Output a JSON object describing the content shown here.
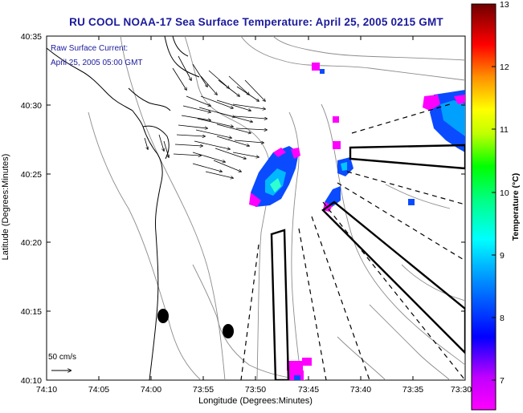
{
  "title": "RU COOL  NOAA-17  Sea Surface Temperature:  April 25, 2005 0215 GMT",
  "overlay": {
    "line1": "Raw Surface Current:",
    "line2": "April 25, 2005 05:00 GMT"
  },
  "scale": {
    "label": "50 cm/s"
  },
  "axes": {
    "xlabel": "Longitude (Degrees:Minutes)",
    "ylabel": "Latitude (Degrees:Minutes)",
    "x_ticks": [
      "74:10",
      "74:05",
      "74:00",
      "73:55",
      "73:50",
      "73:45",
      "73:40",
      "73:35",
      "73:30"
    ],
    "y_ticks": [
      "40:35",
      "40:30",
      "40:25",
      "40:20",
      "40:15",
      "40:10"
    ]
  },
  "colorbar": {
    "label": "Temperature (°C)",
    "ticks": [
      "13",
      "12",
      "11",
      "10",
      "9",
      "8",
      "7"
    ],
    "range": [
      6.5,
      13
    ],
    "colors": [
      "#ff00ff",
      "#0000ff",
      "#00ffff",
      "#00ff00",
      "#ffff00",
      "#ff8000",
      "#ff0000",
      "#7f0000"
    ]
  },
  "colors": {
    "title": "#1a1a9c",
    "coast": "#000000",
    "contour": "#8c8c8c"
  }
}
